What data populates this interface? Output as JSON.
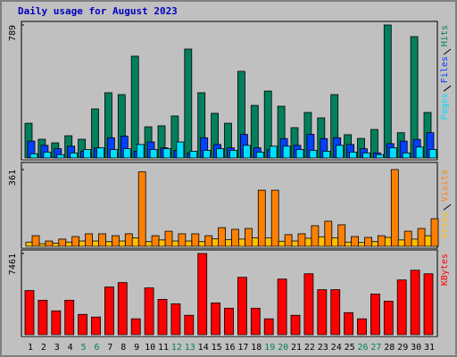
{
  "chart_data": [
    {
      "type": "bar",
      "title": "Daily usage for August 2023",
      "ylim": [
        0,
        789
      ],
      "yticks": [
        789
      ],
      "series": [
        {
          "name": "Hits",
          "color": "#00805c",
          "values": [
            206,
            111,
            90,
            132,
            111,
            291,
            387,
            376,
            604,
            185,
            191,
            249,
            646,
            387,
            265,
            206,
            514,
            312,
            397,
            307,
            180,
            270,
            238,
            376,
            138,
            116,
            169,
            789,
            150,
            720,
            270
          ]
        },
        {
          "name": "Files",
          "color": "#0040ff",
          "values": [
            100,
            75,
            55,
            70,
            40,
            60,
            120,
            130,
            40,
            95,
            60,
            45,
            30,
            120,
            80,
            60,
            140,
            60,
            50,
            115,
            75,
            140,
            115,
            120,
            80,
            55,
            30,
            85,
            100,
            110,
            150
          ]
        },
        {
          "name": "Pages",
          "color": "#00e0ff",
          "values": [
            25,
            35,
            20,
            30,
            50,
            60,
            50,
            55,
            80,
            50,
            55,
            95,
            40,
            45,
            55,
            45,
            75,
            35,
            70,
            70,
            50,
            45,
            40,
            75,
            35,
            30,
            20,
            60,
            30,
            65,
            50
          ]
        }
      ]
    },
    {
      "type": "bar",
      "ylim": [
        0,
        361
      ],
      "yticks": [
        361
      ],
      "series": [
        {
          "name": "Visits",
          "color": "#ff8000",
          "values": [
            50,
            25,
            34,
            46,
            59,
            59,
            50,
            59,
            350,
            50,
            71,
            59,
            59,
            50,
            88,
            80,
            84,
            264,
            264,
            55,
            59,
            97,
            118,
            101,
            46,
            42,
            50,
            361,
            71,
            84,
            130
          ]
        },
        {
          "name": "Sites",
          "color": "#ffc000",
          "values": [
            20,
            12,
            15,
            20,
            25,
            25,
            22,
            25,
            40,
            22,
            30,
            25,
            25,
            22,
            35,
            32,
            34,
            40,
            40,
            24,
            25,
            38,
            45,
            40,
            20,
            18,
            22,
            42,
            30,
            34,
            50
          ]
        }
      ]
    },
    {
      "type": "bar",
      "ylim": [
        0,
        7461
      ],
      "yticks": [
        7461
      ],
      "categories": [
        "1",
        "2",
        "3",
        "4",
        "5",
        "6",
        "7",
        "8",
        "9",
        "10",
        "11",
        "12",
        "13",
        "14",
        "15",
        "16",
        "17",
        "18",
        "19",
        "20",
        "21",
        "22",
        "23",
        "24",
        "25",
        "26",
        "27",
        "28",
        "29",
        "30",
        "31"
      ],
      "category_colors": [
        "#000",
        "#000",
        "#000",
        "#000",
        "#00805c",
        "#00805c",
        "#000",
        "#000",
        "#000",
        "#000",
        "#000",
        "#00805c",
        "#00805c",
        "#000",
        "#000",
        "#000",
        "#000",
        "#000",
        "#00805c",
        "#00805c",
        "#000",
        "#000",
        "#000",
        "#000",
        "#000",
        "#00805c",
        "#00805c",
        "#000",
        "#000",
        "#000",
        "#000"
      ],
      "series": [
        {
          "name": "KBytes",
          "color": "#ff0000",
          "values": [
            4055,
            3163,
            2190,
            3163,
            1865,
            1622,
            4379,
            4785,
            1460,
            4298,
            3244,
            2838,
            1784,
            7461,
            2920,
            2433,
            5271,
            2433,
            1460,
            5109,
            1784,
            5596,
            4136,
            4136,
            2027,
            1460,
            3730,
            3082,
            5028,
            5920,
            5596
          ]
        }
      ]
    }
  ]
}
